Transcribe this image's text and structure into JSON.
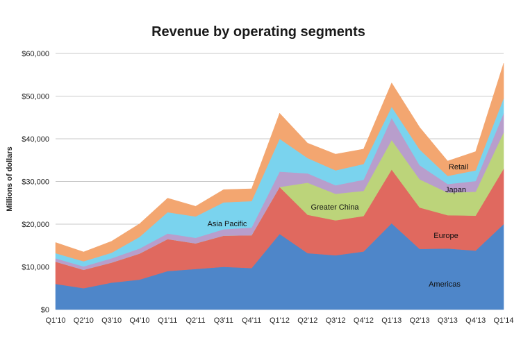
{
  "chart_data": {
    "type": "area",
    "stacked": true,
    "title": "Revenue by operating segments",
    "xlabel": "",
    "ylabel": "Millions of dollars",
    "ylim": [
      0,
      60000
    ],
    "yticks": [
      "$0",
      "$10,000",
      "$20,000",
      "$30,000",
      "$40,000",
      "$50,000",
      "$60,000"
    ],
    "grid": true,
    "categories": [
      "Q1'10",
      "Q2'10",
      "Q3'10",
      "Q4'10",
      "Q1'11",
      "Q2'11",
      "Q3'11",
      "Q4'11",
      "Q1'12",
      "Q2'12",
      "Q3'12",
      "Q4'12",
      "Q1'13",
      "Q2'13",
      "Q3'13",
      "Q4'13",
      "Q1'14"
    ],
    "series": [
      {
        "name": "Americas",
        "color": "#4e86c9",
        "values": [
          6000,
          5000,
          6300,
          7000,
          9000,
          9500,
          10000,
          9700,
          17700,
          13200,
          12700,
          13600,
          20200,
          14200,
          14300,
          13800,
          20000
        ]
      },
      {
        "name": "Europe",
        "color": "#e0695f",
        "values": [
          5200,
          4300,
          4700,
          6100,
          7500,
          6000,
          7300,
          7700,
          11000,
          9000,
          8200,
          8300,
          12600,
          9700,
          7800,
          8200,
          13000
        ]
      },
      {
        "name": "Greater China",
        "color": "#bcd47a",
        "values": [
          0,
          0,
          0,
          0,
          0,
          0,
          0,
          0,
          0,
          7500,
          6200,
          5900,
          6900,
          6600,
          5300,
          5600,
          8500
        ]
      },
      {
        "name": "Japan",
        "color": "#b89ecc",
        "values": [
          800,
          800,
          1000,
          1200,
          1300,
          1300,
          1500,
          1800,
          3600,
          2200,
          2000,
          2600,
          5200,
          3300,
          2000,
          2500,
          4500
        ]
      },
      {
        "name": "Asia Pacific",
        "color": "#7ad3ee",
        "values": [
          1200,
          1200,
          1300,
          2700,
          5000,
          5000,
          6300,
          6200,
          7700,
          3600,
          3500,
          3700,
          2600,
          3700,
          1900,
          2500,
          3500
        ]
      },
      {
        "name": "Retail",
        "color": "#f3a670",
        "values": [
          2500,
          2200,
          2700,
          3100,
          3300,
          2400,
          3000,
          2900,
          6000,
          3500,
          3800,
          3500,
          5600,
          5200,
          3500,
          4400,
          8200
        ]
      }
    ],
    "labels": {
      "americas": "Americas",
      "europe": "Europe",
      "greater_china": "Greater China",
      "japan": "Japan",
      "asia_pacific": "Asia Pacific",
      "retail": "Retail"
    }
  }
}
